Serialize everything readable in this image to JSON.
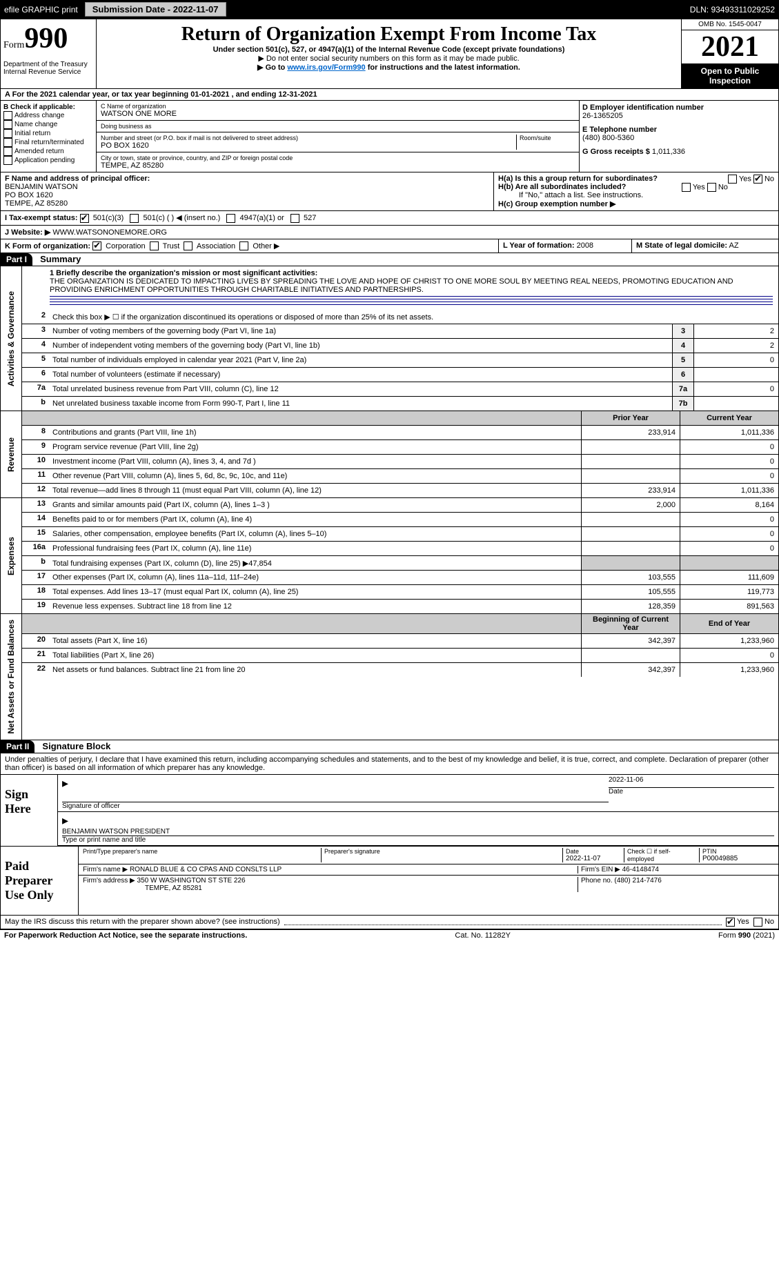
{
  "topbar": {
    "efile": "efile GRAPHIC print",
    "submission_label": "Submission Date - 2022-11-07",
    "dln": "DLN: 93493311029252"
  },
  "header": {
    "form_word": "Form",
    "form_no": "990",
    "dept": "Department of the Treasury\nInternal Revenue Service",
    "title": "Return of Organization Exempt From Income Tax",
    "sub": "Under section 501(c), 527, or 4947(a)(1) of the Internal Revenue Code (except private foundations)",
    "sub2": "▶ Do not enter social security numbers on this form as it may be made public.",
    "sub3_pre": "▶ Go to ",
    "sub3_link": "www.irs.gov/Form990",
    "sub3_post": " for instructions and the latest information.",
    "omb": "OMB No. 1545-0047",
    "year": "2021",
    "open": "Open to Public Inspection"
  },
  "row_a": "A For the 2021 calendar year, or tax year beginning 01-01-2021    , and ending 12-31-2021",
  "box_b": {
    "label": "B Check if applicable:",
    "opts": [
      "Address change",
      "Name change",
      "Initial return",
      "Final return/terminated",
      "Amended return",
      "Application pending"
    ]
  },
  "box_c": {
    "name_label": "C Name of organization",
    "name": "WATSON ONE MORE",
    "dba_label": "Doing business as",
    "dba": "",
    "addr_label": "Number and street (or P.O. box if mail is not delivered to street address)",
    "room_label": "Room/suite",
    "addr": "PO BOX 1620",
    "city_label": "City or town, state or province, country, and ZIP or foreign postal code",
    "city": "TEMPE, AZ  85280"
  },
  "box_d": {
    "label": "D Employer identification number",
    "val": "26-1365205"
  },
  "box_e": {
    "label": "E Telephone number",
    "val": "(480) 800-5360"
  },
  "box_g": {
    "label": "G Gross receipts $",
    "val": "1,011,336"
  },
  "box_f": {
    "label": "F Name and address of principal officer:",
    "name": "BENJAMIN WATSON",
    "addr1": "PO BOX 1620",
    "addr2": "TEMPE, AZ  85280"
  },
  "box_h": {
    "ha": "H(a)  Is this a group return for subordinates?",
    "hb": "H(b)  Are all subordinates included?",
    "hb2": "If \"No,\" attach a list. See instructions.",
    "hc": "H(c)  Group exemption number ▶"
  },
  "box_i": {
    "label": "I   Tax-exempt status:",
    "opts": [
      "501(c)(3)",
      "501(c) (  ) ◀ (insert no.)",
      "4947(a)(1) or",
      "527"
    ]
  },
  "box_j": {
    "label": "J   Website: ▶",
    "val": "WWW.WATSONONEMORE.ORG"
  },
  "box_k": {
    "label": "K Form of organization:",
    "opts": [
      "Corporation",
      "Trust",
      "Association",
      "Other ▶"
    ]
  },
  "box_l": {
    "label": "L Year of formation:",
    "val": "2008"
  },
  "box_m": {
    "label": "M State of legal domicile:",
    "val": "AZ"
  },
  "parts": {
    "p1": "Part I",
    "p1t": "Summary",
    "p2": "Part II",
    "p2t": "Signature Block"
  },
  "summary": {
    "l1_label": "1  Briefly describe the organization's mission or most significant activities:",
    "l1": "THE ORGANIZATION IS DEDICATED TO IMPACTING LIVES BY SPREADING THE LOVE AND HOPE OF CHRIST TO ONE MORE SOUL BY MEETING REAL NEEDS, PROMOTING EDUCATION AND PROVIDING ENRICHMENT OPPORTUNITIES THROUGH CHARITABLE INITIATIVES AND PARTNERSHIPS.",
    "l2": "Check this box ▶ ☐ if the organization discontinued its operations or disposed of more than 25% of its net assets.",
    "lines_ag": [
      {
        "n": "3",
        "t": "Number of voting members of the governing body (Part VI, line 1a)",
        "box": "3",
        "v": "2"
      },
      {
        "n": "4",
        "t": "Number of independent voting members of the governing body (Part VI, line 1b)",
        "box": "4",
        "v": "2"
      },
      {
        "n": "5",
        "t": "Total number of individuals employed in calendar year 2021 (Part V, line 2a)",
        "box": "5",
        "v": "0"
      },
      {
        "n": "6",
        "t": "Total number of volunteers (estimate if necessary)",
        "box": "6",
        "v": ""
      },
      {
        "n": "7a",
        "t": "Total unrelated business revenue from Part VIII, column (C), line 12",
        "box": "7a",
        "v": "0"
      },
      {
        "n": "b",
        "t": "Net unrelated business taxable income from Form 990-T, Part I, line 11",
        "box": "7b",
        "v": ""
      }
    ],
    "hdr_prior": "Prior Year",
    "hdr_curr": "Current Year",
    "rev": [
      {
        "n": "8",
        "t": "Contributions and grants (Part VIII, line 1h)",
        "p": "233,914",
        "c": "1,011,336"
      },
      {
        "n": "9",
        "t": "Program service revenue (Part VIII, line 2g)",
        "p": "",
        "c": "0"
      },
      {
        "n": "10",
        "t": "Investment income (Part VIII, column (A), lines 3, 4, and 7d )",
        "p": "",
        "c": "0"
      },
      {
        "n": "11",
        "t": "Other revenue (Part VIII, column (A), lines 5, 6d, 8c, 9c, 10c, and 11e)",
        "p": "",
        "c": "0"
      },
      {
        "n": "12",
        "t": "Total revenue—add lines 8 through 11 (must equal Part VIII, column (A), line 12)",
        "p": "233,914",
        "c": "1,011,336"
      }
    ],
    "exp": [
      {
        "n": "13",
        "t": "Grants and similar amounts paid (Part IX, column (A), lines 1–3 )",
        "p": "2,000",
        "c": "8,164"
      },
      {
        "n": "14",
        "t": "Benefits paid to or for members (Part IX, column (A), line 4)",
        "p": "",
        "c": "0"
      },
      {
        "n": "15",
        "t": "Salaries, other compensation, employee benefits (Part IX, column (A), lines 5–10)",
        "p": "",
        "c": "0"
      },
      {
        "n": "16a",
        "t": "Professional fundraising fees (Part IX, column (A), line 11e)",
        "p": "",
        "c": "0"
      },
      {
        "n": "b",
        "t": "Total fundraising expenses (Part IX, column (D), line 25) ▶47,854",
        "p": "SHADE",
        "c": "SHADE"
      },
      {
        "n": "17",
        "t": "Other expenses (Part IX, column (A), lines 11a–11d, 11f–24e)",
        "p": "103,555",
        "c": "111,609"
      },
      {
        "n": "18",
        "t": "Total expenses. Add lines 13–17 (must equal Part IX, column (A), line 25)",
        "p": "105,555",
        "c": "119,773"
      },
      {
        "n": "19",
        "t": "Revenue less expenses. Subtract line 18 from line 12",
        "p": "128,359",
        "c": "891,563"
      }
    ],
    "hdr_begin": "Beginning of Current Year",
    "hdr_end": "End of Year",
    "na": [
      {
        "n": "20",
        "t": "Total assets (Part X, line 16)",
        "p": "342,397",
        "c": "1,233,960"
      },
      {
        "n": "21",
        "t": "Total liabilities (Part X, line 26)",
        "p": "",
        "c": "0"
      },
      {
        "n": "22",
        "t": "Net assets or fund balances. Subtract line 21 from line 20",
        "p": "342,397",
        "c": "1,233,960"
      }
    ]
  },
  "vtabs": {
    "ag": "Activities & Governance",
    "rev": "Revenue",
    "exp": "Expenses",
    "na": "Net Assets or Fund Balances"
  },
  "sig_decl": "Under penalties of perjury, I declare that I have examined this return, including accompanying schedules and statements, and to the best of my knowledge and belief, it is true, correct, and complete. Declaration of preparer (other than officer) is based on all information of which preparer has any knowledge.",
  "sign": {
    "label": "Sign Here",
    "date": "2022-11-06",
    "sig_of": "Signature of officer",
    "date_lbl": "Date",
    "name": "BENJAMIN WATSON  PRESIDENT",
    "name_lbl": "Type or print name and title"
  },
  "paid": {
    "label": "Paid Preparer Use Only",
    "h1": "Print/Type preparer's name",
    "h2": "Preparer's signature",
    "h3": "Date",
    "h4": "Check ☐ if self-employed",
    "h5": "PTIN",
    "date": "2022-11-07",
    "ptin": "P00049885",
    "firm_label": "Firm's name    ▶",
    "firm": "RONALD BLUE & CO CPAS AND CONSLTS LLP",
    "ein_label": "Firm's EIN ▶",
    "ein": "46-4148474",
    "addr_label": "Firm's address ▶",
    "addr1": "350 W WASHINGTON ST STE 226",
    "addr2": "TEMPE, AZ  85281",
    "phone_label": "Phone no.",
    "phone": "(480) 214-7476"
  },
  "discuss": "May the IRS discuss this return with the preparer shown above? (see instructions)",
  "footer": {
    "l": "For Paperwork Reduction Act Notice, see the separate instructions.",
    "m": "Cat. No. 11282Y",
    "r": "Form 990 (2021)"
  },
  "yesno": {
    "yes": "Yes",
    "no": "No"
  }
}
